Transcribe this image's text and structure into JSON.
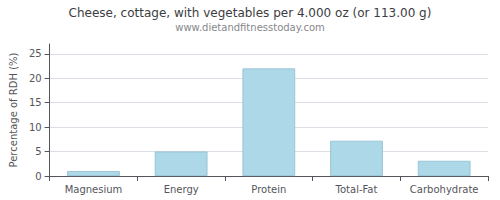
{
  "chart_data": {
    "type": "bar",
    "title": "Cheese, cottage, with vegetables per 4.000 oz (or 113.00 g)",
    "subtitle": "www.dietandfitnesstoday.com",
    "categories": [
      "Magnesium",
      "Energy",
      "Protein",
      "Total-Fat",
      "Carbohydrate"
    ],
    "values": [
      1.0,
      5.0,
      22.0,
      7.2,
      3.1
    ],
    "color": "#acd8e8",
    "ylabel": "Percentage of RDH (%)",
    "ylim": [
      0,
      27
    ],
    "yticks": [
      0,
      5,
      10,
      15,
      20,
      25
    ],
    "grid": true
  }
}
